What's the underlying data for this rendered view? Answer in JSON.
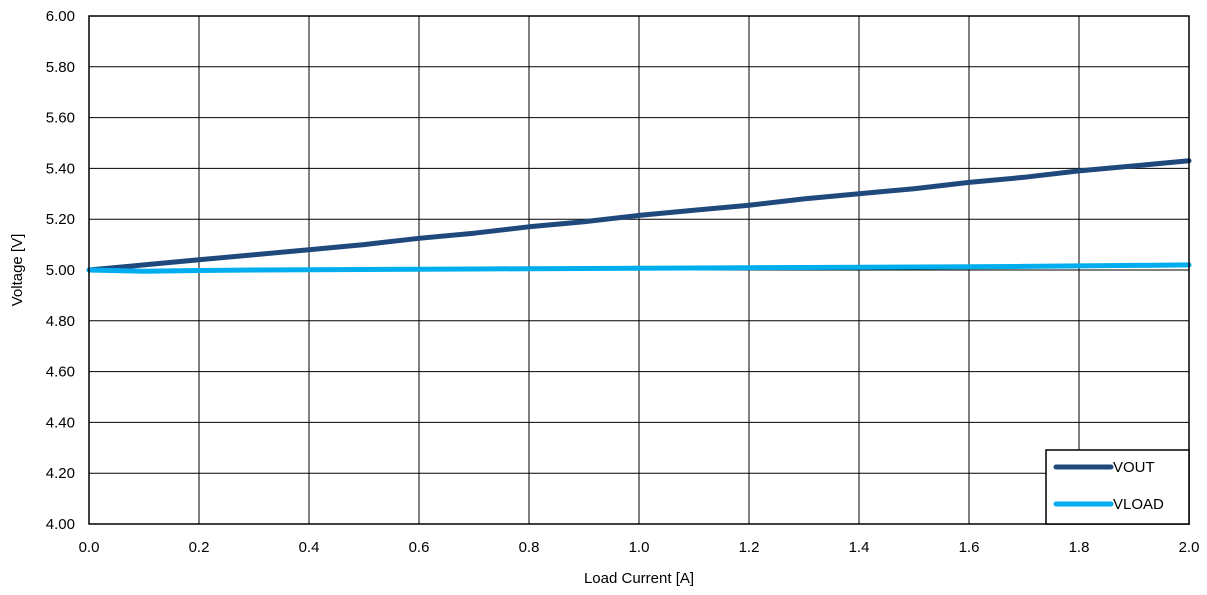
{
  "chart_data": {
    "type": "line",
    "xlabel": "Load Current [A]",
    "ylabel": "Voltage [V]",
    "xlim": [
      0.0,
      2.0
    ],
    "ylim": [
      4.0,
      6.0
    ],
    "x_ticks": [
      "0.0",
      "0.2",
      "0.4",
      "0.6",
      "0.8",
      "1.0",
      "1.2",
      "1.4",
      "1.6",
      "1.8",
      "2.0"
    ],
    "y_ticks": [
      "4.00",
      "4.20",
      "4.40",
      "4.60",
      "4.80",
      "5.00",
      "5.20",
      "5.40",
      "5.60",
      "5.80",
      "6.00"
    ],
    "grid": true,
    "legend_position": "bottom-right",
    "series": [
      {
        "name": "VOUT",
        "color": "#1F497D",
        "x": [
          0.0,
          0.1,
          0.2,
          0.3,
          0.4,
          0.5,
          0.6,
          0.7,
          0.8,
          0.9,
          1.0,
          1.1,
          1.2,
          1.3,
          1.4,
          1.5,
          1.6,
          1.7,
          1.8,
          1.9,
          2.0
        ],
        "y": [
          5.0,
          5.02,
          5.04,
          5.06,
          5.08,
          5.1,
          5.125,
          5.145,
          5.17,
          5.19,
          5.215,
          5.235,
          5.255,
          5.28,
          5.3,
          5.32,
          5.345,
          5.365,
          5.39,
          5.41,
          5.43
        ]
      },
      {
        "name": "VLOAD",
        "color": "#00AEEF",
        "x": [
          0.0,
          0.1,
          0.2,
          0.3,
          0.4,
          0.5,
          0.6,
          0.7,
          0.8,
          0.9,
          1.0,
          1.1,
          1.2,
          1.3,
          1.4,
          1.5,
          1.6,
          1.7,
          1.8,
          1.9,
          2.0
        ],
        "y": [
          5.0,
          4.995,
          4.998,
          5.0,
          5.001,
          5.002,
          5.003,
          5.004,
          5.005,
          5.006,
          5.007,
          5.008,
          5.009,
          5.01,
          5.011,
          5.012,
          5.013,
          5.014,
          5.016,
          5.018,
          5.02
        ]
      }
    ]
  }
}
